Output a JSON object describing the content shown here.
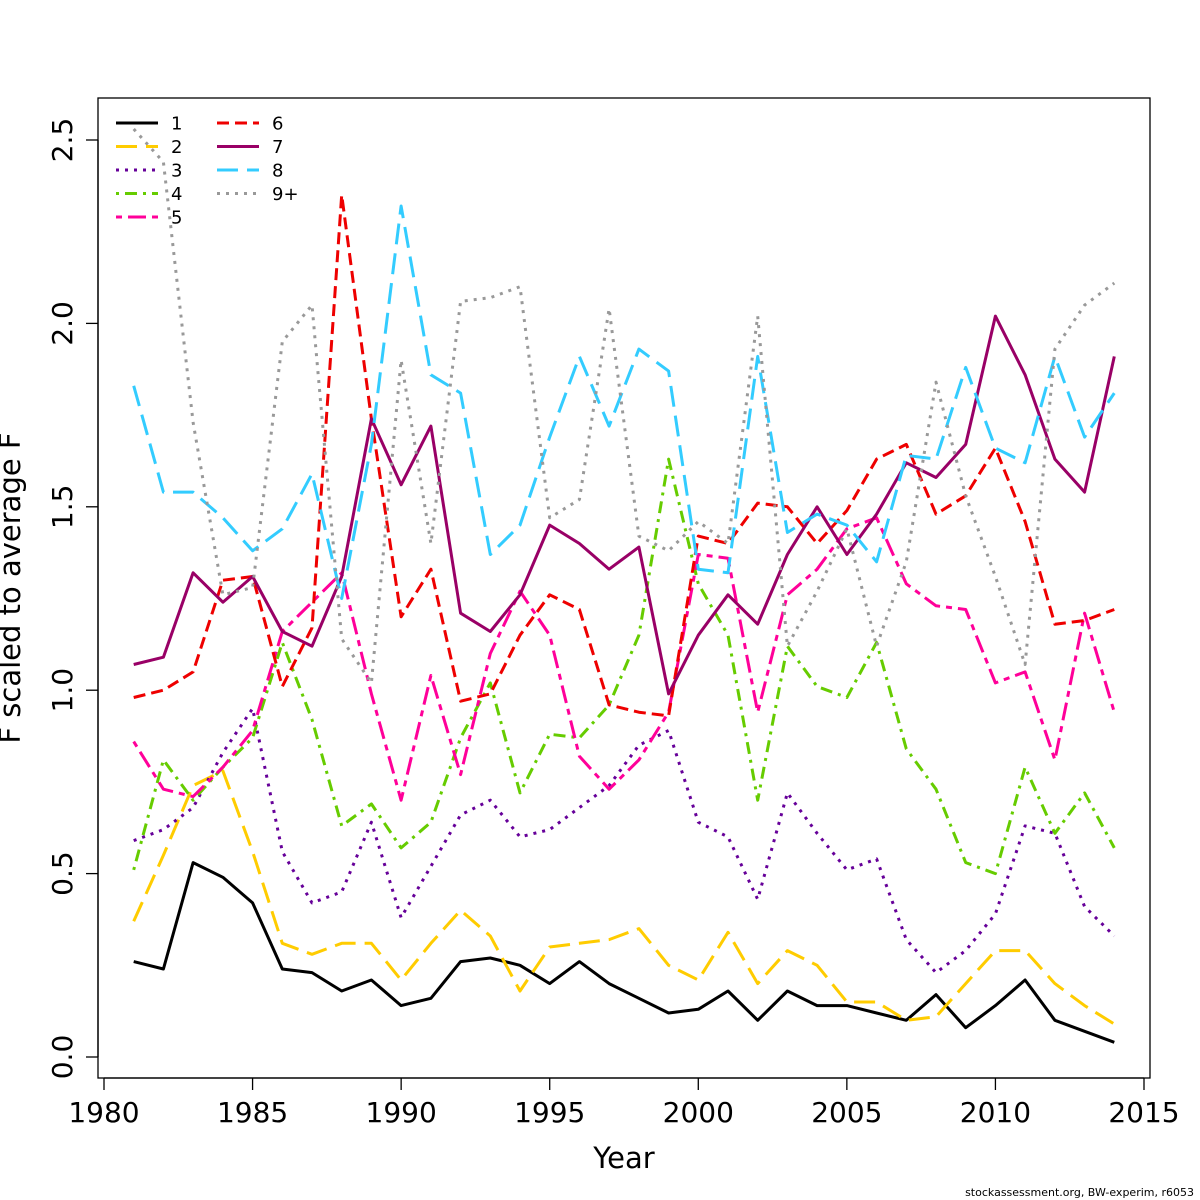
{
  "chart_data": {
    "type": "line",
    "title": "",
    "xlabel": "Year",
    "ylabel": "F scaled to average F",
    "xlim": [
      1980,
      2015
    ],
    "ylim": [
      0,
      2.55
    ],
    "xticks": [
      "1980",
      "1985",
      "1990",
      "1995",
      "2000",
      "2005",
      "2010",
      "2015"
    ],
    "yticks": [
      "0.0",
      "0.5",
      "1.0",
      "1.5",
      "2.0",
      "2.5"
    ],
    "grid": false,
    "legend_position": "top-left",
    "credit": "stockassessment.org, BW-experim, r6053",
    "x": [
      1981,
      1982,
      1983,
      1984,
      1985,
      1986,
      1987,
      1988,
      1989,
      1990,
      1991,
      1992,
      1993,
      1994,
      1995,
      1996,
      1997,
      1998,
      1999,
      2000,
      2001,
      2002,
      2003,
      2004,
      2005,
      2006,
      2007,
      2008,
      2009,
      2010,
      2011,
      2012,
      2013,
      2014
    ],
    "series": [
      {
        "name": "1",
        "color": "#000000",
        "dash": "solid",
        "values": [
          0.26,
          0.24,
          0.53,
          0.49,
          0.42,
          0.24,
          0.23,
          0.18,
          0.21,
          0.14,
          0.16,
          0.26,
          0.27,
          0.25,
          0.2,
          0.26,
          0.2,
          0.16,
          0.12,
          0.13,
          0.18,
          0.1,
          0.18,
          0.14,
          0.14,
          0.12,
          0.1,
          0.17,
          0.08,
          0.14,
          0.21,
          0.1,
          0.07,
          0.04
        ]
      },
      {
        "name": "2",
        "color": "#FFCC00",
        "dash": "longdash",
        "values": [
          0.37,
          0.55,
          0.74,
          0.78,
          0.56,
          0.31,
          0.28,
          0.31,
          0.31,
          0.21,
          0.31,
          0.4,
          0.33,
          0.18,
          0.3,
          0.31,
          0.32,
          0.35,
          0.25,
          0.21,
          0.34,
          0.2,
          0.29,
          0.25,
          0.15,
          0.15,
          0.1,
          0.11,
          0.2,
          0.29,
          0.29,
          0.2,
          0.14,
          0.09
        ]
      },
      {
        "name": "3",
        "color": "#660099",
        "dash": "dotted",
        "values": [
          0.59,
          0.62,
          0.68,
          0.83,
          0.95,
          0.56,
          0.42,
          0.45,
          0.64,
          0.38,
          0.52,
          0.66,
          0.7,
          0.6,
          0.62,
          0.68,
          0.74,
          0.85,
          0.89,
          0.64,
          0.6,
          0.43,
          0.72,
          0.61,
          0.51,
          0.54,
          0.32,
          0.23,
          0.29,
          0.39,
          0.63,
          0.61,
          0.41,
          0.33
        ]
      },
      {
        "name": "4",
        "color": "#66CC00",
        "dash": "dotdash",
        "values": [
          0.51,
          0.81,
          0.7,
          0.79,
          0.87,
          1.13,
          0.92,
          0.63,
          0.69,
          0.57,
          0.64,
          0.87,
          1.02,
          0.72,
          0.88,
          0.87,
          0.96,
          1.15,
          1.63,
          1.29,
          1.15,
          0.7,
          1.12,
          1.01,
          0.98,
          1.13,
          0.84,
          0.73,
          0.53,
          0.5,
          0.79,
          0.61,
          0.72,
          0.57
        ]
      },
      {
        "name": "5",
        "color": "#FF0099",
        "dash": "twodash",
        "values": [
          0.86,
          0.73,
          0.71,
          0.79,
          0.89,
          1.16,
          1.24,
          1.32,
          0.99,
          0.7,
          1.04,
          0.77,
          1.1,
          1.27,
          1.15,
          0.82,
          0.73,
          0.81,
          0.94,
          1.37,
          1.36,
          0.94,
          1.26,
          1.33,
          1.44,
          1.47,
          1.29,
          1.23,
          1.22,
          1.02,
          1.05,
          0.81,
          1.21,
          0.94
        ]
      },
      {
        "name": "6",
        "color": "#EE0000",
        "dash": "dashed",
        "values": [
          0.98,
          1.0,
          1.05,
          1.3,
          1.31,
          1.01,
          1.17,
          2.35,
          1.74,
          1.2,
          1.33,
          0.97,
          0.99,
          1.15,
          1.26,
          1.22,
          0.96,
          0.94,
          0.93,
          1.42,
          1.4,
          1.51,
          1.5,
          1.4,
          1.49,
          1.63,
          1.67,
          1.48,
          1.53,
          1.66,
          1.46,
          1.18,
          1.19,
          1.22
        ]
      },
      {
        "name": "7",
        "color": "#990066",
        "dash": "solid",
        "values": [
          1.07,
          1.09,
          1.32,
          1.24,
          1.31,
          1.16,
          1.12,
          1.31,
          1.74,
          1.56,
          1.72,
          1.21,
          1.16,
          1.26,
          1.45,
          1.4,
          1.33,
          1.39,
          0.99,
          1.15,
          1.26,
          1.18,
          1.37,
          1.5,
          1.37,
          1.48,
          1.62,
          1.58,
          1.67,
          2.02,
          1.86,
          1.63,
          1.54,
          1.91
        ]
      },
      {
        "name": "8",
        "color": "#33CCFF",
        "dash": "longdash",
        "values": [
          1.83,
          1.54,
          1.54,
          1.47,
          1.38,
          1.44,
          1.59,
          1.25,
          1.67,
          2.32,
          1.86,
          1.81,
          1.37,
          1.45,
          1.69,
          1.91,
          1.72,
          1.93,
          1.87,
          1.33,
          1.32,
          1.91,
          1.43,
          1.48,
          1.45,
          1.35,
          1.64,
          1.63,
          1.88,
          1.66,
          1.62,
          1.91,
          1.69,
          1.81
        ]
      },
      {
        "name": "9+",
        "color": "#999999",
        "dash": "dotted",
        "values": [
          2.53,
          2.44,
          1.73,
          1.26,
          1.28,
          1.95,
          2.05,
          1.14,
          1.02,
          1.9,
          1.4,
          2.06,
          2.07,
          2.1,
          1.47,
          1.52,
          2.04,
          1.42,
          1.38,
          1.46,
          1.4,
          2.02,
          1.12,
          1.27,
          1.44,
          1.12,
          1.35,
          1.84,
          1.53,
          1.31,
          1.07,
          1.93,
          2.05,
          2.11
        ]
      }
    ]
  }
}
